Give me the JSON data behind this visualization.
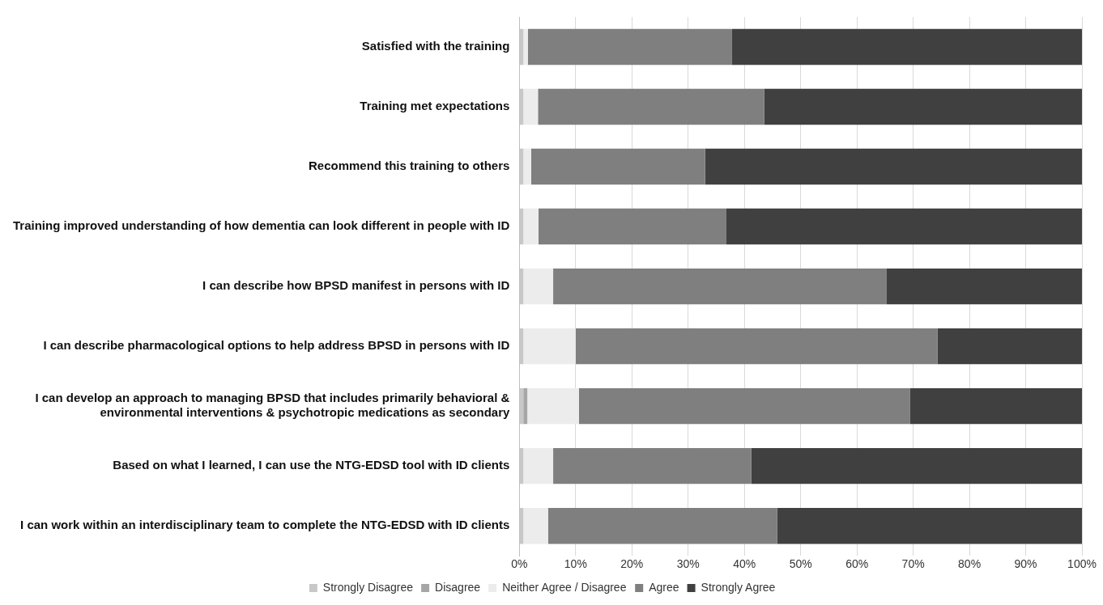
{
  "chart_data": {
    "type": "bar",
    "orientation": "horizontal",
    "stacked": true,
    "categories": [
      "Satisfied with the training",
      "Training met expectations",
      "Recommend this training to others",
      "Training improved understanding of how dementia can look different in people with ID",
      "I can describe how BPSD manifest in persons with ID",
      "I can describe pharmacological options to help address BPSD in persons with ID",
      "I can develop an approach to managing BPSD that includes primarily behavioral & environmental interventions & psychotropic medications as secondary",
      "Based on what I learned, I can use the NTG-EDSD tool with ID clients",
      "I can work within an interdisciplinary team to complete the NTG-EDSD with ID clients"
    ],
    "series": [
      {
        "name": "Strongly Disagree",
        "color": "#c8c8c8",
        "values": [
          0.7,
          0.7,
          0.7,
          0.7,
          0.7,
          0.7,
          0.7,
          0.7,
          0.7
        ]
      },
      {
        "name": "Disagree",
        "color": "#a6a6a6",
        "values": [
          0,
          0,
          0,
          0,
          0,
          0,
          0.7,
          0,
          0
        ]
      },
      {
        "name": "Neither Agree / Disagree",
        "color": "#ececec",
        "values": [
          0.8,
          2.6,
          1.4,
          2.7,
          5.3,
          9.3,
          9.2,
          5.3,
          4.4
        ]
      },
      {
        "name": "Agree",
        "color": "#7f7f7f",
        "values": [
          36.3,
          40.2,
          30.9,
          33.4,
          59.3,
          64.3,
          58.8,
          35.2,
          40.7
        ]
      },
      {
        "name": "Strongly Agree",
        "color": "#404040",
        "values": [
          62.2,
          56.5,
          67.0,
          63.2,
          34.7,
          25.7,
          30.6,
          58.8,
          54.2
        ]
      }
    ],
    "xlim": [
      0,
      100
    ],
    "xticks": [
      {
        "value": 0,
        "label": "0%"
      },
      {
        "value": 10,
        "label": "10%"
      },
      {
        "value": 20,
        "label": "20%"
      },
      {
        "value": 30,
        "label": "30%"
      },
      {
        "value": 40,
        "label": "40%"
      },
      {
        "value": 50,
        "label": "50%"
      },
      {
        "value": 60,
        "label": "60%"
      },
      {
        "value": 70,
        "label": "70%"
      },
      {
        "value": 80,
        "label": "80%"
      },
      {
        "value": 90,
        "label": "90%"
      },
      {
        "value": 100,
        "label": "100%"
      }
    ],
    "grid": "x",
    "legend": "bottom"
  }
}
